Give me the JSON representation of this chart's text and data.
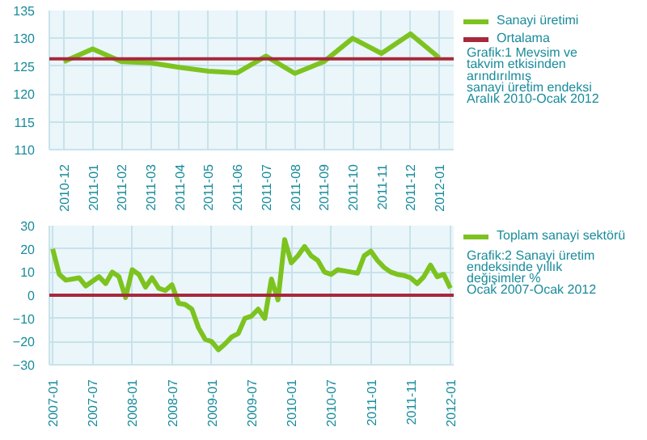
{
  "chart_data": [
    {
      "type": "line",
      "categories": [
        "2010-12",
        "2011-01",
        "2011-02",
        "2011-03",
        "2011-04",
        "2011-05",
        "2011-06",
        "2011-07",
        "2011-08",
        "2011-09",
        "2011-10",
        "2011-11",
        "2011-12",
        "2012-01"
      ],
      "series": [
        {
          "name": "Sanayi üretimi",
          "color": "#7dc31f",
          "values": [
            125.8,
            128.1,
            125.8,
            125.6,
            124.8,
            124.1,
            123.8,
            126.8,
            123.7,
            125.8,
            130.0,
            127.3,
            130.8,
            126.5
          ]
        }
      ],
      "ref_lines": [
        {
          "axis": "y",
          "value": 126.3,
          "label": "Ortalama",
          "color": "#a8283c"
        }
      ],
      "ylim": [
        110,
        135
      ],
      "yticks": [
        110,
        115,
        120,
        125,
        130,
        135
      ],
      "grid": true,
      "legend": "right",
      "annotations": [
        "Grafik:1 Mevsim ve\ntakvim etkisinden\narındırılmış\nsanayi üretim endeksi\nAralık 2010-Ocak 2012"
      ]
    },
    {
      "type": "line",
      "categories": [
        "2007-01",
        null,
        null,
        null,
        null,
        null,
        "2007-07",
        null,
        null,
        null,
        null,
        null,
        "2008-01",
        null,
        null,
        null,
        null,
        null,
        "2008-07",
        null,
        null,
        null,
        null,
        null,
        "2009-01",
        null,
        null,
        null,
        null,
        null,
        "2009-07",
        null,
        null,
        null,
        null,
        null,
        "2010-01",
        null,
        null,
        null,
        null,
        null,
        "2010-07",
        null,
        null,
        null,
        null,
        null,
        "2011-01",
        null,
        null,
        null,
        null,
        null,
        "2011-11",
        null,
        null,
        null,
        null,
        null,
        "2012-01"
      ],
      "series": [
        {
          "name": "Toplam sanayi sektörü",
          "color": "#7dc31f",
          "values": [
            20,
            9,
            6.5,
            7,
            7.5,
            4,
            6,
            8,
            5,
            10,
            8,
            -1,
            11,
            9,
            3.5,
            7.5,
            3,
            2,
            4.5,
            -3.5,
            -4,
            -6,
            -14,
            -19,
            -20,
            -23.5,
            -21,
            -18,
            -16.5,
            -10,
            -9,
            -6,
            -10,
            7,
            -2,
            24,
            14,
            17,
            21,
            17,
            15,
            10,
            9,
            11,
            10.5,
            10,
            9.5,
            17,
            19,
            15,
            12,
            10,
            9,
            8.5,
            7.5,
            5,
            8,
            13,
            8,
            9,
            3
          ]
        }
      ],
      "ref_lines": [
        {
          "axis": "y",
          "value": 0,
          "color": "#a8283c"
        }
      ],
      "ylim": [
        -30,
        30
      ],
      "yticks": [
        -30,
        -20,
        -10,
        0,
        10,
        20,
        30
      ],
      "grid": true,
      "legend": "right",
      "annotations": [
        "Grafik:2 Sanayi üretim\nendeksinde yıllık\ndeğişimler %\nOcak 2007-Ocak 2012"
      ]
    }
  ]
}
